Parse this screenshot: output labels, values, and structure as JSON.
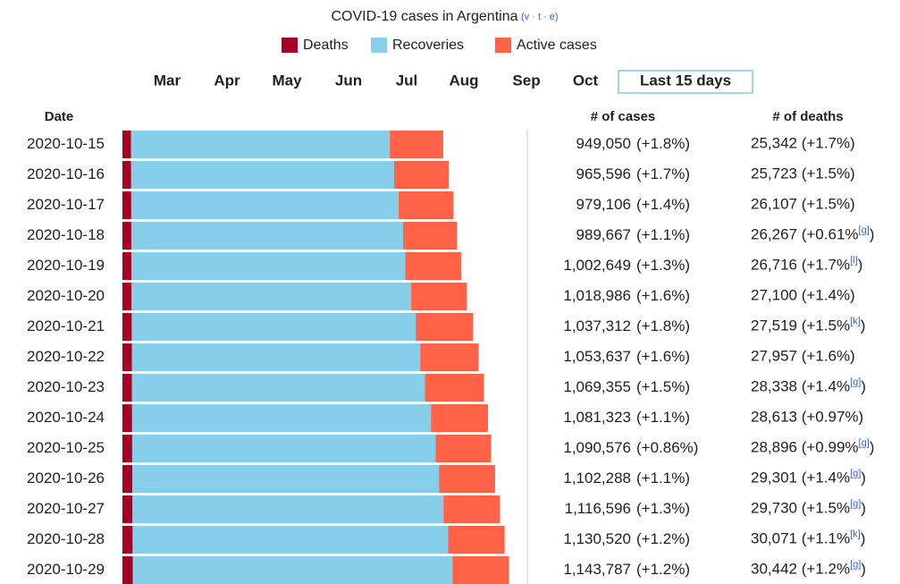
{
  "title": "COVID-19 cases in Argentina",
  "vte": [
    "v",
    "t",
    "e"
  ],
  "buttons": [
    "Mar",
    "Apr",
    "May",
    "Jun",
    "Jul",
    "Aug",
    "Sep",
    "Oct",
    "Last 15 days"
  ],
  "selected": "Last 15 days",
  "columns": {
    "date": "Date",
    "cases": "# of cases",
    "deaths": "# of deaths"
  },
  "chart_data": {
    "type": "bar",
    "orientation": "horizontal",
    "stacked": true,
    "categories": [
      "2020-10-15",
      "2020-10-16",
      "2020-10-17",
      "2020-10-18",
      "2020-10-19",
      "2020-10-20",
      "2020-10-21",
      "2020-10-22",
      "2020-10-23",
      "2020-10-24",
      "2020-10-25",
      "2020-10-26",
      "2020-10-27",
      "2020-10-28",
      "2020-10-29"
    ],
    "xlim": [
      0,
      1195000
    ],
    "series": [
      {
        "name": "Deaths",
        "color": "#a50026",
        "values": [
          25342,
          25723,
          26107,
          26267,
          26716,
          27100,
          27519,
          27957,
          28338,
          28613,
          28896,
          29301,
          29730,
          30071,
          30442
        ]
      },
      {
        "name": "Recoveries",
        "color": "#87ceeb",
        "values": [
          765500,
          778000,
          791000,
          804000,
          810000,
          827000,
          840000,
          853000,
          866000,
          884000,
          897000,
          907000,
          920000,
          933000,
          946000
        ]
      },
      {
        "name": "Active cases",
        "color": "#ff6347",
        "values": [
          158200,
          161900,
          162000,
          159400,
          165900,
          164900,
          169800,
          172700,
          175000,
          168700,
          164700,
          166000,
          166900,
          167400,
          167300
        ]
      }
    ]
  },
  "rows": [
    {
      "cases": [
        "949,050",
        "(+1.8%)"
      ],
      "deaths": [
        "25,342 (+1.7%)"
      ]
    },
    {
      "cases": [
        "965,596",
        "(+1.7%)"
      ],
      "deaths": [
        "25,723 (+1.5%)"
      ]
    },
    {
      "cases": [
        "979,106",
        "(+1.4%)"
      ],
      "deaths": [
        "26,107 (+1.5%)"
      ]
    },
    {
      "cases": [
        "989,667",
        "(+1.1%)"
      ],
      "deaths": [
        "26,267 (+0.61%",
        "[g]",
        ")"
      ]
    },
    {
      "cases": [
        "1,002,649",
        "(+1.3%)"
      ],
      "deaths": [
        "26,716 (+1.7%",
        "[l]",
        ")"
      ]
    },
    {
      "cases": [
        "1,018,986",
        "(+1.6%)"
      ],
      "deaths": [
        "27,100 (+1.4%)"
      ]
    },
    {
      "cases": [
        "1,037,312",
        "(+1.8%)"
      ],
      "deaths": [
        "27,519 (+1.5%",
        "[k]",
        ")"
      ]
    },
    {
      "cases": [
        "1,053,637",
        "(+1.6%)"
      ],
      "deaths": [
        "27,957 (+1.6%)"
      ]
    },
    {
      "cases": [
        "1,069,355",
        "(+1.5%)"
      ],
      "deaths": [
        "28,338 (+1.4%",
        "[g]",
        ")"
      ]
    },
    {
      "cases": [
        "1,081,323",
        "(+1.1%)"
      ],
      "deaths": [
        "28,613 (+0.97%)"
      ]
    },
    {
      "cases": [
        "1,090,576",
        "(+0.86%)"
      ],
      "deaths": [
        "28,896 (+0.99%",
        "[g]",
        ")"
      ]
    },
    {
      "cases": [
        "1,102,288",
        "(+1.1%)"
      ],
      "deaths": [
        "29,301 (+1.4%",
        "[g]",
        ")"
      ]
    },
    {
      "cases": [
        "1,116,596",
        "(+1.3%)"
      ],
      "deaths": [
        "29,730 (+1.5%",
        "[g]",
        ")"
      ]
    },
    {
      "cases": [
        "1,130,520",
        "(+1.2%)"
      ],
      "deaths": [
        "30,071 (+1.1%",
        "[k]",
        ")"
      ]
    },
    {
      "cases": [
        "1,143,787",
        "(+1.2%)"
      ],
      "deaths": [
        "30,442 (+1.2%",
        "[g]",
        ")"
      ]
    }
  ]
}
